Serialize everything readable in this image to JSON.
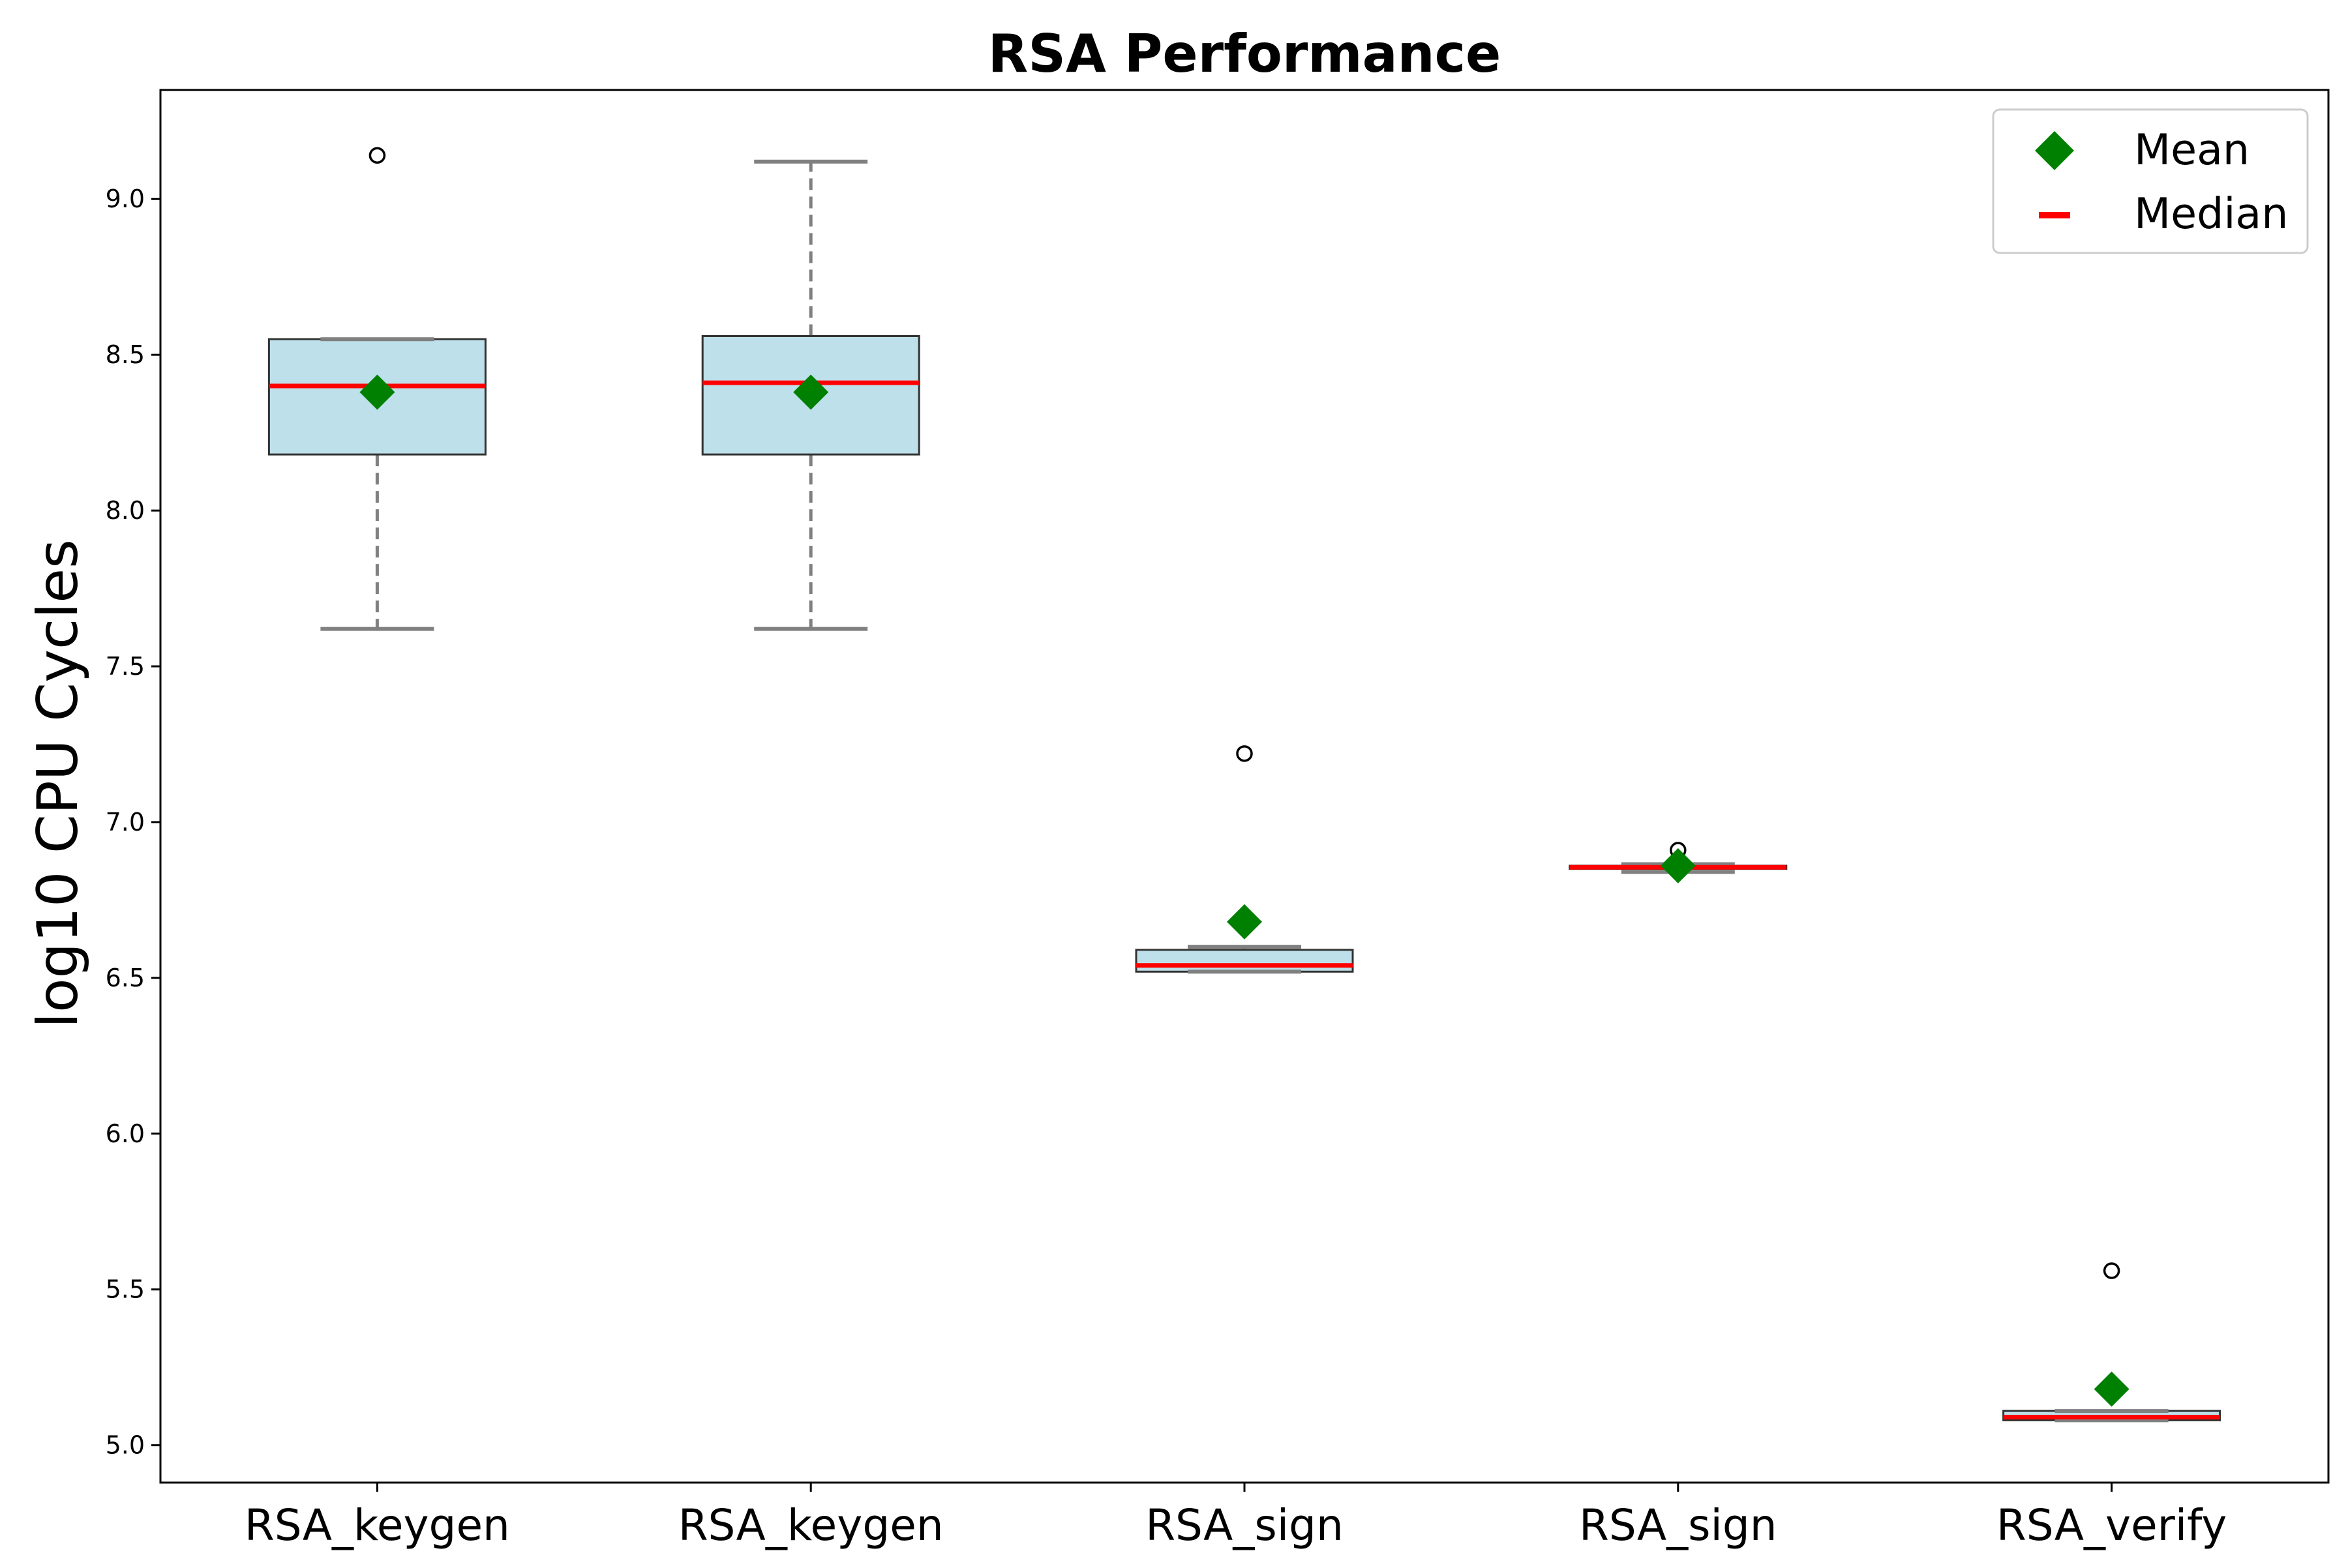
{
  "chart_data": {
    "type": "box",
    "title": "RSA Performance",
    "xlabel": "",
    "ylabel": "log10 CPU Cycles",
    "ylim": [
      4.88,
      9.35
    ],
    "yticks": [
      "5.0",
      "5.5",
      "6.0",
      "6.5",
      "7.0",
      "7.5",
      "8.0",
      "8.5",
      "9.0"
    ],
    "grid": false,
    "legend_position": "top-right",
    "legend": [
      {
        "label": "Mean",
        "marker": "diamond",
        "color": "#008000"
      },
      {
        "label": "Median",
        "marker": "line",
        "color": "#ff0000"
      }
    ],
    "colors": {
      "box_fill": "#add8e6",
      "box_edge": "#333333",
      "whisker": "#808080",
      "median": "#ff0000",
      "mean": "#008000",
      "flier": "#000000"
    },
    "categories": [
      "RSA_keygen",
      "RSA_keygen",
      "RSA_sign",
      "RSA_sign",
      "RSA_verify"
    ],
    "boxes": [
      {
        "category": "RSA_keygen",
        "whisker_low": 7.62,
        "q1": 8.18,
        "median": 8.4,
        "q3": 8.55,
        "whisker_high": 8.55,
        "mean": 8.38,
        "outliers": [
          9.14
        ]
      },
      {
        "category": "RSA_keygen",
        "whisker_low": 7.62,
        "q1": 8.18,
        "median": 8.41,
        "q3": 8.56,
        "whisker_high": 9.12,
        "mean": 8.38,
        "outliers": []
      },
      {
        "category": "RSA_sign",
        "whisker_low": 6.52,
        "q1": 6.52,
        "median": 6.54,
        "q3": 6.59,
        "whisker_high": 6.6,
        "mean": 6.68,
        "outliers": [
          7.22
        ]
      },
      {
        "category": "RSA_sign",
        "whisker_low": 6.84,
        "q1": 6.85,
        "median": 6.855,
        "q3": 6.86,
        "whisker_high": 6.865,
        "mean": 6.86,
        "outliers": [
          6.91
        ]
      },
      {
        "category": "RSA_verify",
        "whisker_low": 5.08,
        "q1": 5.08,
        "median": 5.09,
        "q3": 5.11,
        "whisker_high": 5.11,
        "mean": 5.18,
        "outliers": [
          5.56
        ]
      }
    ]
  }
}
